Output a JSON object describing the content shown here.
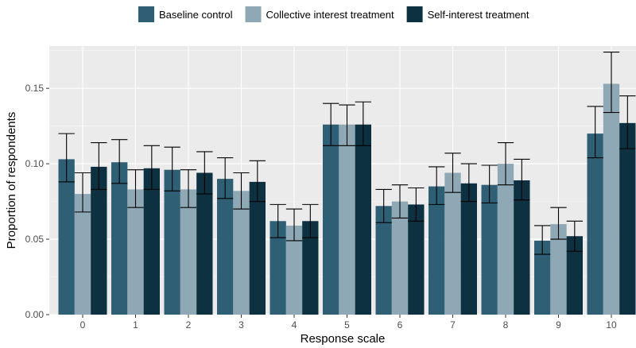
{
  "chart_data": {
    "type": "bar",
    "xlabel": "Response scale",
    "ylabel": "Proportion of respondents",
    "ylim": [
      0,
      0.178
    ],
    "yticks": [
      0.0,
      0.05,
      0.1,
      0.15
    ],
    "ytick_labels": [
      "0.00",
      "0.05",
      "0.10",
      "0.15"
    ],
    "grid": true,
    "legend_position": "top",
    "error_bars": true,
    "categories": [
      "0",
      "1",
      "2",
      "3",
      "4",
      "5",
      "6",
      "7",
      "8",
      "9",
      "10"
    ],
    "series": [
      {
        "name": "Baseline control",
        "color": "#2f5f74",
        "values": [
          0.103,
          0.101,
          0.096,
          0.09,
          0.062,
          0.126,
          0.072,
          0.085,
          0.086,
          0.049,
          0.12
        ],
        "err_low": [
          0.088,
          0.087,
          0.082,
          0.077,
          0.051,
          0.112,
          0.061,
          0.073,
          0.074,
          0.04,
          0.104
        ],
        "err_high": [
          0.12,
          0.116,
          0.111,
          0.104,
          0.073,
          0.14,
          0.083,
          0.098,
          0.099,
          0.059,
          0.138
        ]
      },
      {
        "name": "Collective interest treatment",
        "color": "#8ea9b5",
        "values": [
          0.08,
          0.083,
          0.083,
          0.082,
          0.059,
          0.126,
          0.075,
          0.094,
          0.1,
          0.06,
          0.153
        ],
        "err_low": [
          0.068,
          0.071,
          0.071,
          0.07,
          0.049,
          0.112,
          0.064,
          0.081,
          0.086,
          0.05,
          0.134
        ],
        "err_high": [
          0.094,
          0.096,
          0.096,
          0.094,
          0.07,
          0.139,
          0.086,
          0.107,
          0.114,
          0.071,
          0.174
        ]
      },
      {
        "name": "Self-interest treatment",
        "color": "#0e3142",
        "values": [
          0.098,
          0.097,
          0.094,
          0.088,
          0.062,
          0.126,
          0.073,
          0.087,
          0.089,
          0.052,
          0.127
        ],
        "err_low": [
          0.083,
          0.083,
          0.08,
          0.075,
          0.051,
          0.112,
          0.062,
          0.075,
          0.076,
          0.042,
          0.11
        ],
        "err_high": [
          0.114,
          0.112,
          0.108,
          0.102,
          0.073,
          0.141,
          0.084,
          0.1,
          0.103,
          0.062,
          0.145
        ]
      }
    ]
  }
}
